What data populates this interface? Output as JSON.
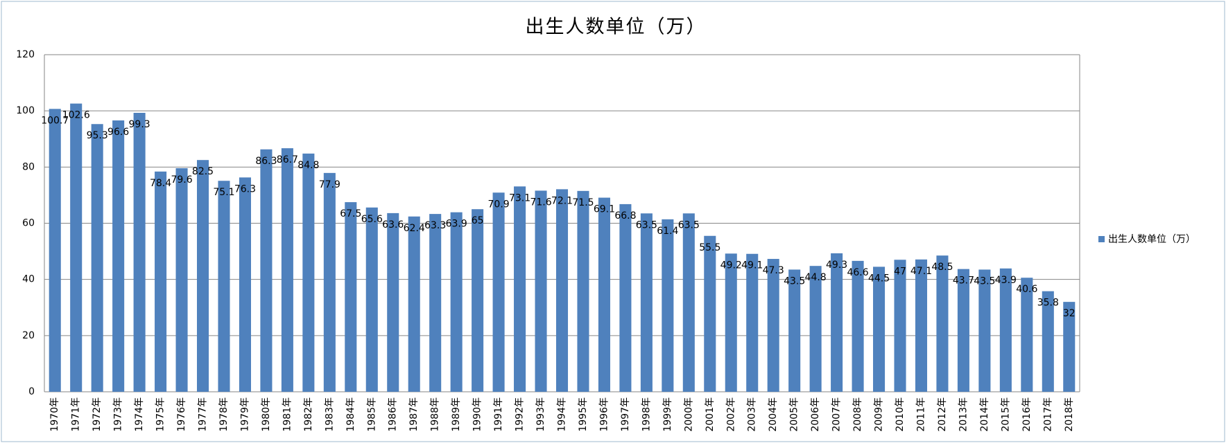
{
  "chart_data": {
    "type": "bar",
    "title": "出生人数单位（万）",
    "categories": [
      "1970年",
      "1971年",
      "1972年",
      "1973年",
      "1974年",
      "1975年",
      "1976年",
      "1977年",
      "1978年",
      "1979年",
      "1980年",
      "1981年",
      "1982年",
      "1983年",
      "1984年",
      "1985年",
      "1986年",
      "1987年",
      "1988年",
      "1989年",
      "1990年",
      "1991年",
      "1992年",
      "1993年",
      "1994年",
      "1995年",
      "1996年",
      "1997年",
      "1998年",
      "1999年",
      "2000年",
      "2001年",
      "2002年",
      "2003年",
      "2004年",
      "2005年",
      "2006年",
      "2007年",
      "2008年",
      "2009年",
      "2010年",
      "2011年",
      "2012年",
      "2013年",
      "2014年",
      "2015年",
      "2016年",
      "2017年",
      "2018年"
    ],
    "series": [
      {
        "name": "出生人数单位（万）",
        "color": "#4f81bd",
        "values": [
          100.7,
          102.6,
          95.3,
          96.6,
          99.3,
          78.4,
          79.6,
          82.5,
          75.1,
          76.3,
          86.3,
          86.7,
          84.8,
          77.9,
          67.5,
          65.6,
          63.6,
          62.4,
          63.3,
          63.9,
          65,
          70.9,
          73.1,
          71.6,
          72.1,
          71.5,
          69.1,
          66.8,
          63.5,
          61.4,
          63.5,
          55.5,
          49.2,
          49.1,
          47.3,
          43.5,
          44.8,
          49.3,
          46.6,
          44.5,
          47,
          47.1,
          48.5,
          43.7,
          43.5,
          43.9,
          40.6,
          35.8,
          32
        ]
      }
    ],
    "ylim": [
      0,
      120
    ],
    "yticks": [
      0,
      20,
      40,
      60,
      80,
      100,
      120
    ],
    "grid": true,
    "legend": "right"
  }
}
